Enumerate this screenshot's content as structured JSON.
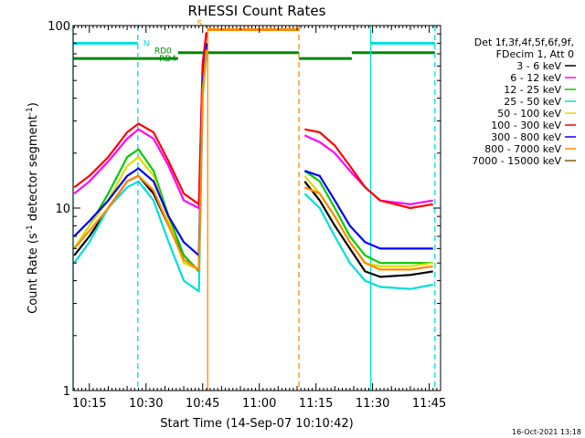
{
  "chart_data": {
    "type": "line",
    "title": "RHESSI Count Rates",
    "xlabel": "Start Time (14-Sep-07 10:10:42)",
    "ylabel_parts": [
      "Count Rate (s",
      "-1",
      " detector segment",
      "-1",
      ")"
    ],
    "y_scale": "log",
    "ylim": [
      1,
      100
    ],
    "xlim": [
      "10:10:42",
      "11:48:00"
    ],
    "y_ticks": [
      {
        "value": 1,
        "label": "1"
      },
      {
        "value": 10,
        "label": "10"
      },
      {
        "value": 100,
        "label": "100"
      }
    ],
    "x_ticks": [
      {
        "value": "10:15",
        "label": "10:15"
      },
      {
        "value": "10:30",
        "label": "10:30"
      },
      {
        "value": "10:45",
        "label": "10:45"
      },
      {
        "value": "11:00",
        "label": "11:00"
      },
      {
        "value": "11:15",
        "label": "11:15"
      },
      {
        "value": "11:30",
        "label": "11:30"
      },
      {
        "value": "11:45",
        "label": "11:45"
      }
    ],
    "legend": {
      "placement": "outside-right",
      "header": [
        "Det 1f,3f,4f,5f,6f,9f,",
        "FDecim 1, Att 0"
      ]
    },
    "series": [
      {
        "name": "3 - 6 keV",
        "color": "#000000",
        "x": [
          "10:11",
          "10:15",
          "10:20",
          "10:25",
          "10:28",
          "10:32",
          "10:36",
          "10:40",
          "10:44",
          "10:45",
          "10:46",
          "11:12",
          "11:16",
          "11:20",
          "11:24",
          "11:28",
          "11:32",
          "11:40",
          "11:46"
        ],
        "y": [
          5.5,
          7,
          10,
          14,
          15,
          12,
          8,
          5.5,
          4.5,
          50,
          80,
          14,
          11,
          8,
          6,
          4.5,
          4.2,
          4.3,
          4.5
        ]
      },
      {
        "name": "6 - 12 keV",
        "color": "#ff00ff",
        "x": [
          "10:11",
          "10:15",
          "10:20",
          "10:25",
          "10:28",
          "10:32",
          "10:36",
          "10:40",
          "10:44",
          "10:45",
          "10:46",
          "11:12",
          "11:16",
          "11:20",
          "11:24",
          "11:28",
          "11:32",
          "11:40",
          "11:46"
        ],
        "y": [
          12,
          14,
          18,
          24,
          27,
          24,
          17,
          11,
          10,
          60,
          90,
          25,
          23,
          20,
          16,
          13,
          11,
          10.5,
          11
        ]
      },
      {
        "name": "12 - 25 keV",
        "color": "#00cc00",
        "x": [
          "10:11",
          "10:15",
          "10:20",
          "10:25",
          "10:28",
          "10:32",
          "10:36",
          "10:40",
          "10:44",
          "10:45",
          "10:46",
          "11:12",
          "11:16",
          "11:20",
          "11:24",
          "11:28",
          "11:32",
          "11:40",
          "11:46"
        ],
        "y": [
          6,
          8,
          12,
          19,
          21,
          16,
          9,
          5.5,
          4.5,
          45,
          75,
          16,
          14,
          10,
          7,
          5.5,
          5,
          5,
          5
        ]
      },
      {
        "name": "25 - 50 keV",
        "color": "#00dddd",
        "x": [
          "10:11",
          "10:15",
          "10:20",
          "10:25",
          "10:28",
          "10:32",
          "10:36",
          "10:40",
          "10:44",
          "10:45",
          "10:46",
          "11:12",
          "11:16",
          "11:20",
          "11:24",
          "11:28",
          "11:32",
          "11:40",
          "11:46"
        ],
        "y": [
          5,
          6.5,
          10,
          13,
          14,
          11,
          6.5,
          4,
          3.5,
          40,
          70,
          12,
          10,
          7,
          5,
          4,
          3.7,
          3.6,
          3.8
        ]
      },
      {
        "name": "50 - 100 keV",
        "color": "#dddd00",
        "x": [
          "10:11",
          "10:15",
          "10:20",
          "10:25",
          "10:28",
          "10:32",
          "10:36",
          "10:40",
          "10:44",
          "10:45",
          "10:46",
          "11:12",
          "11:16",
          "11:20",
          "11:24",
          "11:28",
          "11:32",
          "11:40",
          "11:46"
        ],
        "y": [
          6,
          8,
          11,
          17,
          19,
          15,
          8.5,
          5,
          4.6,
          42,
          72,
          15,
          12,
          9,
          6.5,
          5,
          4.8,
          4.8,
          5
        ]
      },
      {
        "name": "100 - 300 keV",
        "color": "#ff0000",
        "x": [
          "10:11",
          "10:15",
          "10:20",
          "10:25",
          "10:28",
          "10:32",
          "10:36",
          "10:40",
          "10:44",
          "10:45",
          "10:46",
          "11:12",
          "11:16",
          "11:20",
          "11:24",
          "11:28",
          "11:32",
          "11:40",
          "11:46"
        ],
        "y": [
          13,
          15,
          19,
          26,
          29,
          26,
          18,
          12,
          10.5,
          62,
          92,
          27,
          26,
          22,
          17,
          13,
          11,
          10,
          10.5
        ]
      },
      {
        "name": "300 - 800 keV",
        "color": "#0000ff",
        "x": [
          "10:11",
          "10:15",
          "10:20",
          "10:25",
          "10:28",
          "10:32",
          "10:36",
          "10:40",
          "10:44",
          "10:45",
          "10:46",
          "11:12",
          "11:16",
          "11:20",
          "11:24",
          "11:28",
          "11:32",
          "11:40",
          "11:46"
        ],
        "y": [
          7,
          8.5,
          11,
          15,
          16.5,
          14,
          9,
          6.5,
          5.5,
          48,
          78,
          16,
          15,
          11,
          8,
          6.5,
          6,
          6,
          6
        ]
      },
      {
        "name": "800 - 7000 keV",
        "color": "#ff8800",
        "x": [
          "10:11",
          "10:15",
          "10:20",
          "10:25",
          "10:28",
          "10:32",
          "10:36",
          "10:40",
          "10:44",
          "10:45",
          "10:46",
          "11:12",
          "11:16",
          "11:20",
          "11:24",
          "11:28",
          "11:32",
          "11:40",
          "11:46"
        ],
        "y": [
          6,
          7.5,
          10,
          14,
          15,
          12.5,
          8,
          5.2,
          4.6,
          44,
          74,
          13,
          12,
          9,
          6.5,
          5,
          4.6,
          4.6,
          4.8
        ]
      },
      {
        "name": "7000 - 15000 keV",
        "color": "#7a5a10",
        "x": [],
        "y": []
      }
    ],
    "data_gaps": [
      {
        "from": "10:46",
        "to": "11:12"
      }
    ],
    "vertical_markers": [
      {
        "x": "10:10:42",
        "color": "#00dddd",
        "style": "solid"
      },
      {
        "x": "10:27:50",
        "color": "#00dddd",
        "style": "dashed"
      },
      {
        "x": "10:46:20",
        "color": "#ff8800",
        "style": "solid"
      },
      {
        "x": "11:10:30",
        "color": "#ff8800",
        "style": "dashed"
      },
      {
        "x": "11:29:30",
        "color": "#00dddd",
        "style": "solid"
      },
      {
        "x": "11:46:30",
        "color": "#00dddd",
        "style": "dashed"
      }
    ],
    "flag_bars": [
      {
        "label": "N",
        "color": "#00dddd",
        "y": 80,
        "segments": [
          [
            "10:10:42",
            "10:27:50"
          ],
          [
            "11:29:30",
            "11:46:30"
          ]
        ]
      },
      {
        "label": "S",
        "color": "#ff8800",
        "y": 95,
        "segments": [
          [
            "10:46:20",
            "11:10:30"
          ]
        ]
      },
      {
        "label": "RD0",
        "color": "#008800",
        "y": 71,
        "segments": [
          [
            "10:38:30",
            "11:10:30"
          ],
          [
            "11:24:30",
            "11:46:30"
          ]
        ]
      },
      {
        "label": "RD4",
        "color": "#008800",
        "y": 66,
        "segments": [
          [
            "10:10:42",
            "10:38:30"
          ],
          [
            "11:10:30",
            "11:24:30"
          ]
        ]
      }
    ]
  },
  "footer": {
    "timestamp": "16-Oct-2021 13:18"
  }
}
